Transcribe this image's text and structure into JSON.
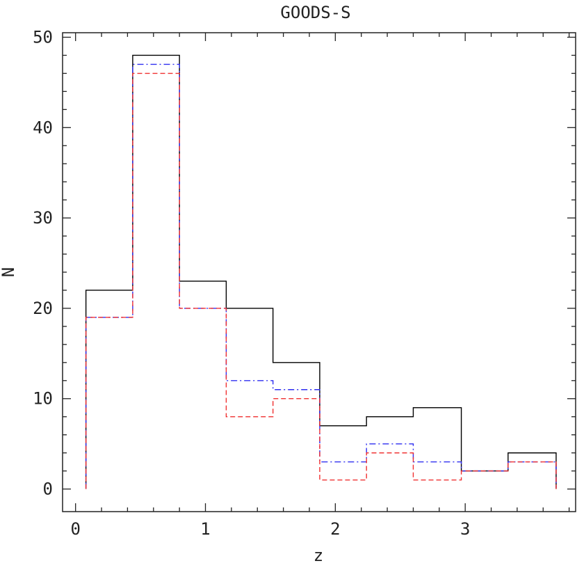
{
  "chart_data": {
    "type": "histogram",
    "title": "GOODS-S",
    "xlabel": "z",
    "ylabel": "N",
    "xlim": [
      -0.1,
      3.85
    ],
    "ylim": [
      -2.5,
      50.5
    ],
    "x_ticks": [
      "0",
      "1",
      "2",
      "3"
    ],
    "y_ticks": [
      "0",
      "10",
      "20",
      "30",
      "40",
      "50"
    ],
    "bin_edges": [
      0.08,
      0.44,
      0.8,
      1.16,
      1.52,
      1.88,
      2.24,
      2.6,
      2.97,
      3.33,
      3.7
    ],
    "series": [
      {
        "values": [
          22,
          48,
          23,
          20,
          14,
          7,
          8,
          9,
          2,
          4
        ],
        "color": "#000000",
        "style": "solid"
      },
      {
        "values": [
          19,
          47,
          20,
          12,
          11,
          3,
          5,
          3,
          2,
          3
        ],
        "color": "#2e2ef0",
        "style": "dashdot"
      },
      {
        "values": [
          19,
          46,
          20,
          8,
          10,
          1,
          4,
          1,
          2,
          3
        ],
        "color": "#f03030",
        "style": "dashed"
      }
    ],
    "grid": false,
    "legend": "none"
  }
}
